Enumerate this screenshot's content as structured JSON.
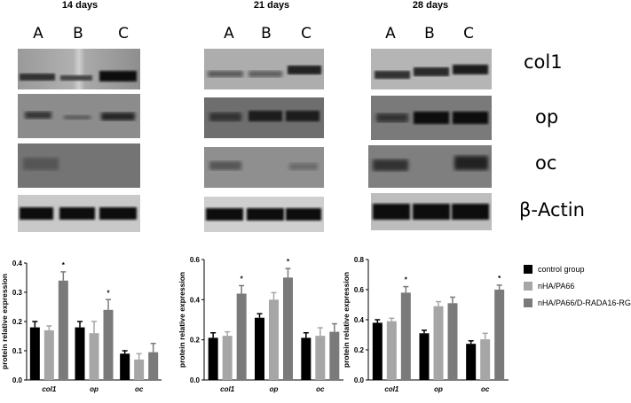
{
  "panel_titles": [
    "14 days",
    "21 days",
    "28 days"
  ],
  "lane_labels": [
    "A",
    "B",
    "C"
  ],
  "band_labels": [
    "col1",
    "op",
    "oc",
    "β-Actin"
  ],
  "legend": [
    {
      "label": "control group",
      "color": "#000000"
    },
    {
      "label": "nHA/PA66",
      "color": "#a6a6a6"
    },
    {
      "label": "nHA/PA66/D-RADA16-RGD",
      "color": "#7a7a7a"
    }
  ],
  "chart_data": [
    {
      "type": "bar",
      "panel": "14 days",
      "categories": [
        "col1",
        "op",
        "oc"
      ],
      "ylabel": "protein relative expression",
      "ylim": [
        0,
        0.4
      ],
      "yticks": [
        "0.0",
        "0.1",
        "0.2",
        "0.3",
        "0.4"
      ],
      "series": [
        {
          "name": "control group",
          "values": [
            0.18,
            0.18,
            0.09
          ],
          "errors": [
            0.02,
            0.02,
            0.01
          ]
        },
        {
          "name": "nHA/PA66",
          "values": [
            0.17,
            0.16,
            0.07
          ],
          "errors": [
            0.015,
            0.04,
            0.02
          ]
        },
        {
          "name": "nHA/PA66/D-RADA16-RGD",
          "values": [
            0.34,
            0.24,
            0.095
          ],
          "errors": [
            0.03,
            0.035,
            0.03
          ]
        }
      ],
      "annotations": [
        {
          "category": "col1",
          "text": "*"
        },
        {
          "category": "op",
          "text": "*"
        }
      ]
    },
    {
      "type": "bar",
      "panel": "21 days",
      "categories": [
        "col1",
        "op",
        "oc"
      ],
      "ylabel": "protein relative expression",
      "ylim": [
        0,
        0.6
      ],
      "yticks": [
        "0.0",
        "0.2",
        "0.4",
        "0.6"
      ],
      "series": [
        {
          "name": "control group",
          "values": [
            0.21,
            0.31,
            0.21
          ],
          "errors": [
            0.025,
            0.02,
            0.025
          ]
        },
        {
          "name": "nHA/PA66",
          "values": [
            0.22,
            0.4,
            0.22
          ],
          "errors": [
            0.02,
            0.035,
            0.04
          ]
        },
        {
          "name": "nHA/PA66/D-RADA16-RGD",
          "values": [
            0.43,
            0.51,
            0.24
          ],
          "errors": [
            0.04,
            0.045,
            0.04
          ]
        }
      ],
      "annotations": [
        {
          "category": "col1",
          "text": "*"
        },
        {
          "category": "op",
          "text": "*"
        }
      ]
    },
    {
      "type": "bar",
      "panel": "28 days",
      "categories": [
        "col1",
        "op",
        "oc"
      ],
      "ylabel": "protein relative expression",
      "ylim": [
        0,
        0.8
      ],
      "yticks": [
        "0.0",
        "0.2",
        "0.4",
        "0.6",
        "0.8"
      ],
      "series": [
        {
          "name": "control group",
          "values": [
            0.38,
            0.31,
            0.24
          ],
          "errors": [
            0.02,
            0.02,
            0.02
          ]
        },
        {
          "name": "nHA/PA66",
          "values": [
            0.39,
            0.49,
            0.27
          ],
          "errors": [
            0.02,
            0.03,
            0.04
          ]
        },
        {
          "name": "nHA/PA66/D-RADA16-RGD",
          "values": [
            0.58,
            0.51,
            0.6
          ],
          "errors": [
            0.04,
            0.04,
            0.03
          ]
        }
      ],
      "annotations": [
        {
          "category": "col1",
          "text": "*"
        },
        {
          "category": "oc",
          "text": "*"
        }
      ]
    }
  ]
}
